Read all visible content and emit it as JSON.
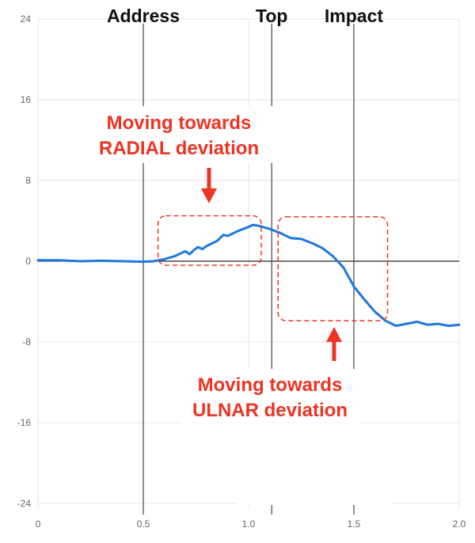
{
  "chart_data": {
    "type": "line",
    "xlim": [
      0,
      2.0
    ],
    "ylim": [
      -24,
      24
    ],
    "x_ticks": [
      "0",
      "0.5",
      "1.0",
      "1.5",
      "2.0"
    ],
    "y_ticks": [
      "24",
      "16",
      "8",
      "0",
      "-8",
      "-16",
      "-24"
    ],
    "grid": true,
    "colors": {
      "line": "#1f77e0",
      "annotation": "#ee3322",
      "phase_line": "#444444"
    },
    "phase_markers": [
      {
        "label": "Address",
        "x": 0.5
      },
      {
        "label": "Top",
        "x": 1.11
      },
      {
        "label": "Impact",
        "x": 1.5
      }
    ],
    "annotations": [
      {
        "lines": [
          "Moving towards",
          "RADIAL deviation"
        ],
        "arrow": "down",
        "region_x": [
          0.57,
          1.06
        ],
        "region_y": [
          4.5,
          -0.4
        ]
      },
      {
        "lines": [
          "Moving towards",
          "ULNAR deviation"
        ],
        "arrow": "up",
        "region_x": [
          1.14,
          1.66
        ],
        "region_y": [
          4.4,
          -5.9
        ]
      }
    ],
    "series": [
      {
        "x": [
          0.0,
          0.1,
          0.2,
          0.3,
          0.4,
          0.5,
          0.55,
          0.6,
          0.65,
          0.7,
          0.72,
          0.74,
          0.76,
          0.78,
          0.8,
          0.85,
          0.88,
          0.9,
          0.95,
          1.0,
          1.02,
          1.05,
          1.1,
          1.15,
          1.2,
          1.25,
          1.3,
          1.35,
          1.4,
          1.45,
          1.5,
          1.55,
          1.6,
          1.65,
          1.7,
          1.75,
          1.8,
          1.85,
          1.9,
          1.95,
          2.0
        ],
        "values": [
          0.1,
          0.1,
          0.0,
          0.05,
          0.0,
          -0.05,
          0.0,
          0.2,
          0.5,
          1.0,
          0.7,
          1.1,
          1.4,
          1.2,
          1.5,
          2.0,
          2.6,
          2.5,
          3.0,
          3.4,
          3.6,
          3.5,
          3.2,
          2.8,
          2.3,
          2.2,
          1.8,
          1.3,
          0.5,
          -0.6,
          -2.5,
          -3.8,
          -5.0,
          -5.9,
          -6.4,
          -6.2,
          -6.0,
          -6.3,
          -6.2,
          -6.4,
          -6.3
        ]
      }
    ]
  }
}
